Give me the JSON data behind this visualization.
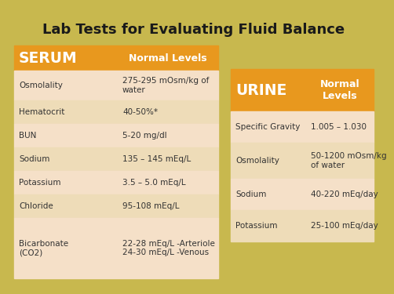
{
  "title": "Lab Tests for Evaluating Fluid Balance",
  "bg_color": "#c8b84e",
  "header_color": "#e8981e",
  "row_color_light": "#f5e0c8",
  "row_color_alt": "#eedcb8",
  "header_text_color": "#ffffff",
  "title_color": "#1a1a1a",
  "serum_rows": [
    [
      "Osmolality",
      "275-295 mOsm/kg of\nwater"
    ],
    [
      "Hematocrit",
      "40-50%*"
    ],
    [
      "BUN",
      "5-20 mg/dl"
    ],
    [
      "Sodium",
      "135 – 145 mEq/L"
    ],
    [
      "Potassium",
      "3.5 – 5.0 mEq/L"
    ],
    [
      "Chloride",
      "95-108 mEq/L"
    ],
    [
      "Bicarbonate\n(CO2)",
      "22-28 mEq/L -Arteriole\n24-30 mEq/L -Venous"
    ]
  ],
  "urine_rows": [
    [
      "Specific Gravity",
      "1.005 – 1.030"
    ],
    [
      "Osmolality",
      "50-1200 mOsm/kg\nof water"
    ],
    [
      "Sodium",
      "40-220 mEq/day"
    ],
    [
      "Potassium",
      "25-100 mEq/day"
    ]
  ]
}
